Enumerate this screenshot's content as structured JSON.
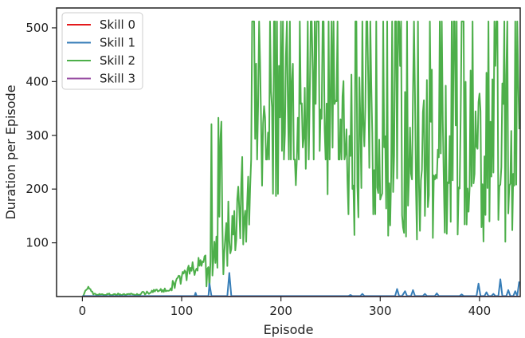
{
  "chart_data": {
    "type": "line",
    "title": "",
    "xlabel": "Episode",
    "ylabel": "Duration per Episode",
    "xlim": [
      -26,
      441
    ],
    "ylim": [
      0,
      537
    ],
    "x_ticks": [
      0,
      100,
      200,
      300,
      400
    ],
    "y_ticks": [
      100,
      200,
      300,
      400,
      500
    ],
    "grid": false,
    "legend_position": "top-left",
    "series": [
      {
        "name": "Skill 0",
        "color": "#e41a1c",
        "points": [
          [
            0,
            0
          ],
          [
            440,
            0
          ]
        ]
      },
      {
        "name": "Skill 1",
        "color": "#377eb8",
        "points": [
          [
            0,
            1
          ],
          [
            113,
            1
          ],
          [
            114,
            7
          ],
          [
            115,
            1
          ],
          [
            127,
            1
          ],
          [
            128,
            24
          ],
          [
            130,
            1
          ],
          [
            146,
            1
          ],
          [
            148,
            44
          ],
          [
            150,
            1
          ],
          [
            268,
            1
          ],
          [
            270,
            3
          ],
          [
            272,
            1
          ],
          [
            280,
            1
          ],
          [
            282,
            5
          ],
          [
            284,
            1
          ],
          [
            315,
            1
          ],
          [
            317,
            14
          ],
          [
            319,
            1
          ],
          [
            322,
            1
          ],
          [
            325,
            10
          ],
          [
            327,
            1
          ],
          [
            331,
            1
          ],
          [
            333,
            12
          ],
          [
            335,
            1
          ],
          [
            343,
            1
          ],
          [
            345,
            5
          ],
          [
            347,
            1
          ],
          [
            355,
            1
          ],
          [
            357,
            6
          ],
          [
            359,
            1
          ],
          [
            380,
            1
          ],
          [
            382,
            4
          ],
          [
            384,
            1
          ],
          [
            397,
            1
          ],
          [
            399,
            24
          ],
          [
            401,
            1
          ],
          [
            405,
            1
          ],
          [
            407,
            8
          ],
          [
            409,
            1
          ],
          [
            412,
            1
          ],
          [
            414,
            5
          ],
          [
            416,
            1
          ],
          [
            419,
            1
          ],
          [
            421,
            32
          ],
          [
            423,
            1
          ],
          [
            427,
            1
          ],
          [
            429,
            12
          ],
          [
            431,
            1
          ],
          [
            434,
            1
          ],
          [
            436,
            10
          ],
          [
            438,
            1
          ],
          [
            440,
            28
          ]
        ]
      },
      {
        "name": "Skill 2",
        "color": "#4daf4a",
        "generated_from_pattern": true
      },
      {
        "name": "Skill 3",
        "color": "#984ea3",
        "points": [
          [
            0,
            0
          ],
          [
            440,
            0
          ]
        ]
      }
    ]
  }
}
